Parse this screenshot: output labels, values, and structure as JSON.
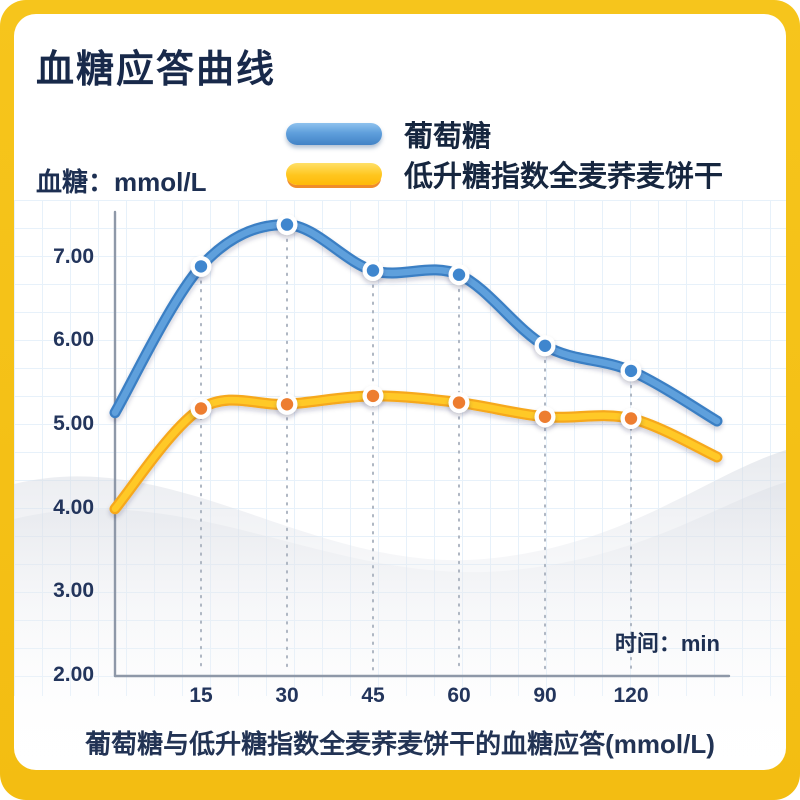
{
  "page": {
    "title": "血糖应答曲线",
    "y_axis_label": "血糖：mmol/L",
    "x_axis_label": "时间：min",
    "caption": "葡萄糖与低升糖指数全麦荞麦饼干的血糖应答(mmol/L)",
    "colors": {
      "frame_yellow": "#f5c21d",
      "navy_text": "#1c2c4e",
      "glucose_blue": "#4f93d8",
      "biscuit_yellow": "#ffc927",
      "biscuit_point_orange": "#ed7d2f"
    }
  },
  "chart_data": {
    "type": "line",
    "title": "血糖应答曲线",
    "ylabel": "血糖：mmol/L",
    "xlabel": "时间：min",
    "x_tick_labels": [
      "15",
      "30",
      "45",
      "60",
      "90",
      "120"
    ],
    "y_tick_labels": [
      "7.00",
      "6.00",
      "5.00",
      "4.00",
      "3.00",
      "2.00"
    ],
    "y_tick_values": [
      7,
      6,
      5,
      4,
      3,
      2
    ],
    "ylim": [
      2.0,
      7.9
    ],
    "x_layout_hint": "x ticks equally spaced; both curves start at t=0 on the y-axis and extend slightly past 120 min; dotted vertical guides at each tick",
    "legend_position": "top-center",
    "grid": true,
    "series": [
      {
        "name": "葡萄糖",
        "color": "#5fa0dc",
        "edge_color": "#3a7fc4",
        "point_color": "#3f86ce",
        "x_points": [
          "0",
          "15",
          "30",
          "45",
          "60",
          "90",
          "120",
          "tail"
        ],
        "values": [
          5.15,
          6.9,
          7.4,
          6.85,
          6.8,
          5.95,
          5.65,
          5.05
        ]
      },
      {
        "name": "低升糖指数全麦荞麦饼干",
        "color": "#ffc927",
        "edge_color": "#f6a81c",
        "point_color": "#ed7d2f",
        "x_points": [
          "0",
          "15",
          "30",
          "45",
          "60",
          "90",
          "120",
          "tail"
        ],
        "values": [
          4.0,
          5.2,
          5.25,
          5.35,
          5.27,
          5.1,
          5.08,
          4.62
        ]
      }
    ]
  }
}
